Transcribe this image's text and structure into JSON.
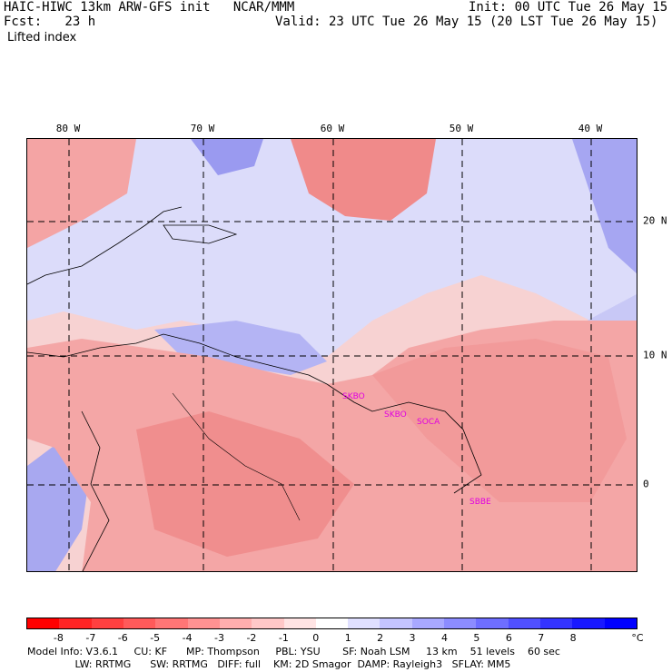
{
  "header": {
    "line1_left": "HAIC-HIWC 13km ARW-GFS init   NCAR/MMM",
    "line1_right": "Init: 00 UTC Tue 26 May 15",
    "line2_left": "Fcst:   23 h",
    "line2_right": "Valid: 23 UTC Tue 26 May 15 (20 LST Tue 26 May 15)",
    "field": "Lifted index"
  },
  "map": {
    "lon_labels": [
      "80 W",
      "70 W",
      "60 W",
      "50 W",
      "40 W"
    ],
    "lat_labels": [
      "20 N",
      "10 N",
      "0"
    ],
    "stations": [
      "SKBO",
      "SKBO",
      "SOCA",
      "SBBE"
    ]
  },
  "colorbar": {
    "unit": "°C",
    "tick_labels": [
      "-8",
      "-7",
      "-6",
      "-5",
      "-4",
      "-3",
      "-2",
      "-1",
      "0",
      "1",
      "2",
      "3",
      "4",
      "5",
      "6",
      "7",
      "8"
    ],
    "colors": [
      "#ff0000",
      "#ff2424",
      "#ff4040",
      "#ff5a5a",
      "#ff7676",
      "#ff9292",
      "#ffaeae",
      "#ffc8c8",
      "#ffe4e4",
      "#ffffff",
      "#e0e0ff",
      "#c4c4ff",
      "#a8a8ff",
      "#8c8cff",
      "#6e6eff",
      "#5050ff",
      "#3434ff",
      "#1818ff",
      "#0000ff"
    ]
  },
  "model_info": {
    "line1": "Model Info: V3.6.1     CU: KF      MP: Thompson     PBL: YSU       SF: Noah LSM     13 km    51 levels    60 sec",
    "line2": "               LW: RRTMG      SW: RRTMG   DIFF: full    KM: 2D Smagor  DAMP: Rayleigh3   SFLAY: MM5"
  }
}
